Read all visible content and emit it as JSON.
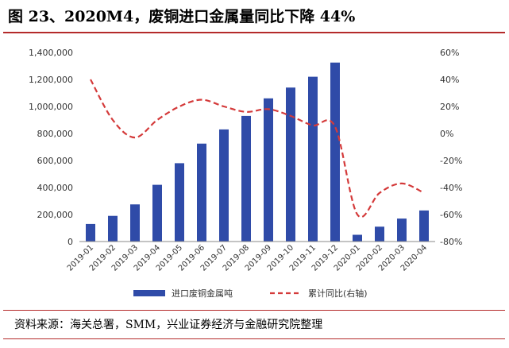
{
  "title": "图 23、2020M4，废铜进口金属量同比下降 44%",
  "source": "资料来源：海关总署，SMM，兴业证券经济与金融研究院整理",
  "colors": {
    "bar": "#2f4ba8",
    "line": "#d43a3a",
    "rule": "#b42a2a",
    "axis": "#888888",
    "text": "#333333"
  },
  "chart_data": {
    "type": "bar",
    "categories": [
      "2019-01",
      "2019-02",
      "2019-03",
      "2019-04",
      "2019-05",
      "2019-06",
      "2019-07",
      "2019-08",
      "2019-09",
      "2019-10",
      "2019-11",
      "2019-12",
      "2020-01",
      "2020-02",
      "2020-03",
      "2020-04"
    ],
    "series": [
      {
        "name": "进口废铜金属吨",
        "type": "bar",
        "axis": "left",
        "values": [
          130000,
          190000,
          275000,
          420000,
          580000,
          725000,
          830000,
          930000,
          1060000,
          1140000,
          1220000,
          1325000,
          50000,
          110000,
          170000,
          230000
        ]
      },
      {
        "name": "累计同比(右轴)",
        "type": "line",
        "style": "dashed",
        "axis": "right",
        "values": [
          40,
          10,
          -3,
          10,
          20,
          25,
          20,
          16,
          18,
          13,
          6,
          5,
          -60,
          -44,
          -37,
          -44
        ]
      }
    ],
    "ylim": [
      0,
      1400000
    ],
    "yticks": [
      "0",
      "200,000",
      "400,000",
      "600,000",
      "800,000",
      "1,000,000",
      "1,200,000",
      "1,400,000"
    ],
    "y2lim": [
      -80,
      60
    ],
    "y2ticks": [
      "-80%",
      "-60%",
      "-40%",
      "-20%",
      "0%",
      "20%",
      "40%",
      "60%"
    ],
    "legend": "bottom"
  }
}
